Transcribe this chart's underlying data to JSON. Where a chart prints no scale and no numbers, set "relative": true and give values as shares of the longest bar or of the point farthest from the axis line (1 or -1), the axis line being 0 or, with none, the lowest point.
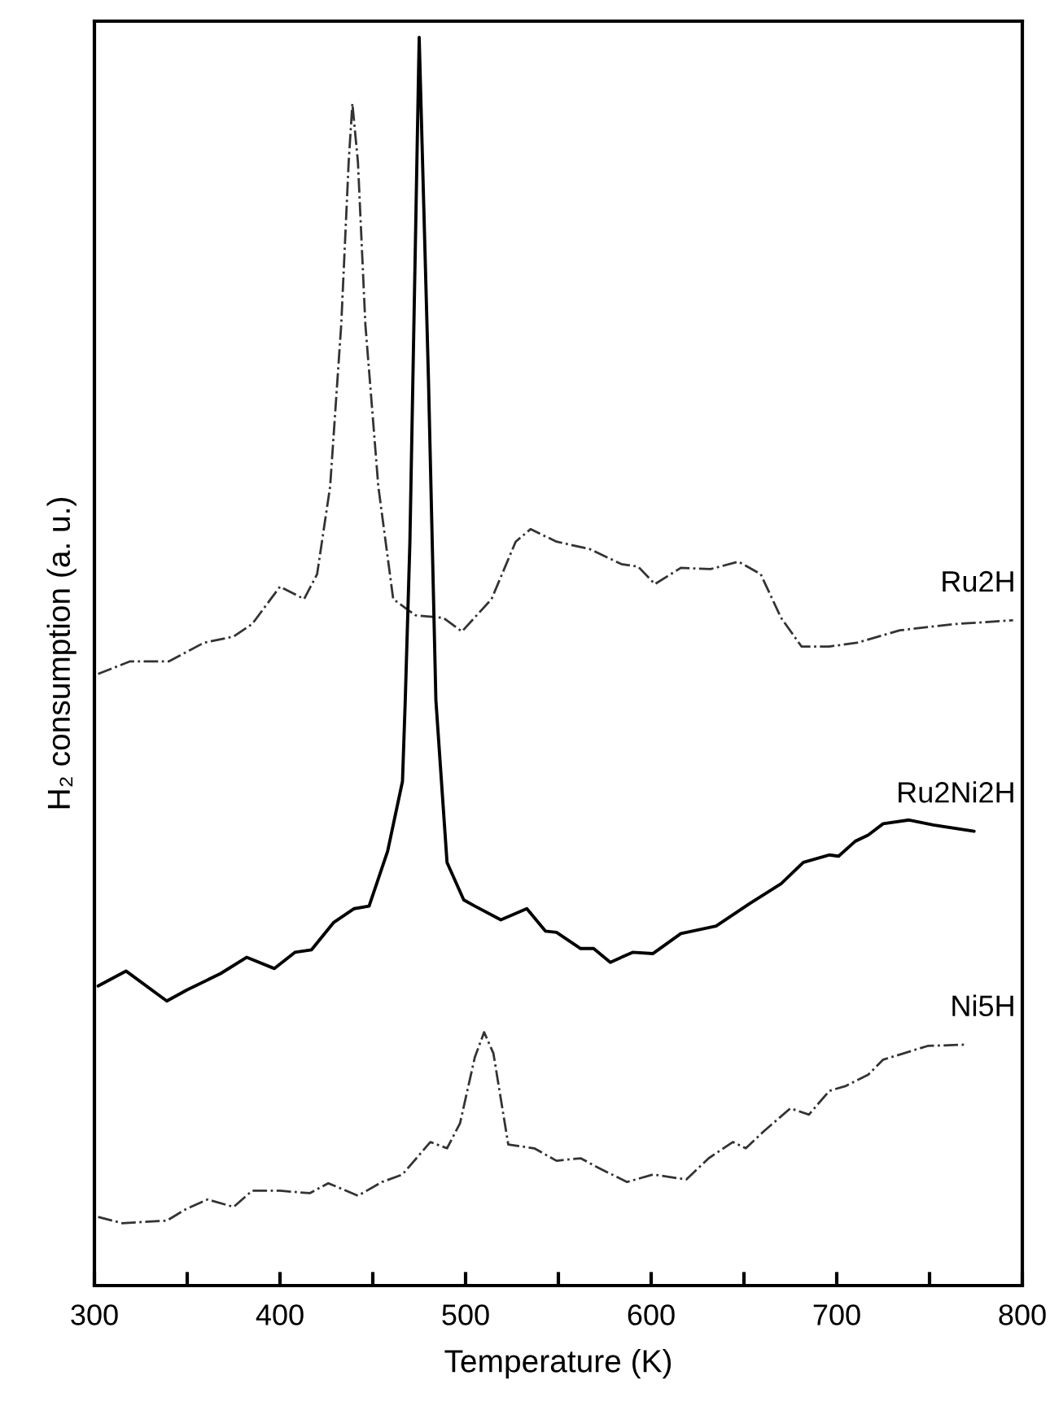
{
  "chart_data": {
    "type": "line",
    "relative": true,
    "xlabel": "Temperature (K)",
    "ylabel": "H₂ consumption (a. u.)",
    "xlim": [
      300,
      800
    ],
    "xticks": [
      300,
      {
        "value": 350,
        "label": null
      },
      400,
      {
        "value": 450,
        "label": null
      },
      500,
      {
        "value": 550,
        "label": null
      },
      600,
      {
        "value": 650,
        "label": null
      },
      700,
      {
        "value": 750,
        "label": null
      },
      800
    ],
    "tick_labels": "x",
    "grid": false,
    "legend": false,
    "marker": "none",
    "series": [
      {
        "name": "Ru2H",
        "color": "#333333",
        "line_style": "dashdot",
        "x": [
          302,
          319,
          340,
          359,
          375,
          385,
          400,
          413,
          420,
          427,
          433,
          437,
          439,
          442,
          446,
          453,
          461,
          473,
          488,
          498,
          514,
          527,
          535,
          549,
          567,
          584,
          593,
          602,
          616,
          632,
          647,
          659,
          670,
          681,
          696,
          711,
          734,
          764,
          795
        ],
        "values": [
          0.49,
          0.5,
          0.5,
          0.515,
          0.52,
          0.53,
          0.56,
          0.55,
          0.57,
          0.64,
          0.77,
          0.9,
          0.947,
          0.9,
          0.77,
          0.64,
          0.55,
          0.537,
          0.535,
          0.524,
          0.55,
          0.596,
          0.606,
          0.596,
          0.59,
          0.578,
          0.576,
          0.562,
          0.575,
          0.574,
          0.58,
          0.57,
          0.535,
          0.512,
          0.512,
          0.515,
          0.525,
          0.53,
          0.533
        ]
      },
      {
        "name": "Ru2Ni2H",
        "color": "#000000",
        "line_style": "solid",
        "x": [
          302,
          317,
          339,
          350,
          368,
          382,
          397,
          408,
          417,
          429,
          440,
          448,
          458,
          466,
          467.5,
          470,
          475,
          480,
          484,
          490,
          499,
          505,
          519,
          533,
          543,
          549,
          562,
          569,
          578,
          590,
          601,
          616,
          635,
          653,
          670,
          682,
          696,
          701,
          710,
          717,
          725,
          739,
          752,
          774
        ],
        "values": [
          0.24,
          0.252,
          0.228,
          0.237,
          0.25,
          0.263,
          0.254,
          0.267,
          0.269,
          0.291,
          0.302,
          0.304,
          0.348,
          0.404,
          0.469,
          0.596,
          1.0,
          0.726,
          0.469,
          0.339,
          0.309,
          0.304,
          0.293,
          0.302,
          0.284,
          0.283,
          0.27,
          0.27,
          0.259,
          0.267,
          0.266,
          0.282,
          0.288,
          0.306,
          0.322,
          0.339,
          0.345,
          0.344,
          0.356,
          0.361,
          0.37,
          0.373,
          0.369,
          0.364
        ]
      },
      {
        "name": "Ni5H",
        "color": "#333333",
        "line_style": "dashdot",
        "x": [
          302,
          315,
          339,
          349,
          361,
          375,
          385,
          400,
          416,
          426,
          442,
          455,
          466,
          481,
          490,
          497,
          505,
          510,
          515,
          523,
          537,
          549,
          562,
          572,
          587,
          601,
          619,
          631,
          644,
          651,
          661,
          675,
          685,
          696,
          705,
          717,
          725,
          749,
          769
        ],
        "values": [
          0.055,
          0.05,
          0.052,
          0.061,
          0.069,
          0.063,
          0.076,
          0.076,
          0.074,
          0.082,
          0.072,
          0.083,
          0.089,
          0.115,
          0.11,
          0.13,
          0.183,
          0.203,
          0.186,
          0.113,
          0.11,
          0.1,
          0.102,
          0.094,
          0.083,
          0.089,
          0.085,
          0.102,
          0.115,
          0.11,
          0.124,
          0.142,
          0.137,
          0.156,
          0.16,
          0.169,
          0.181,
          0.192,
          0.193
        ]
      }
    ]
  }
}
